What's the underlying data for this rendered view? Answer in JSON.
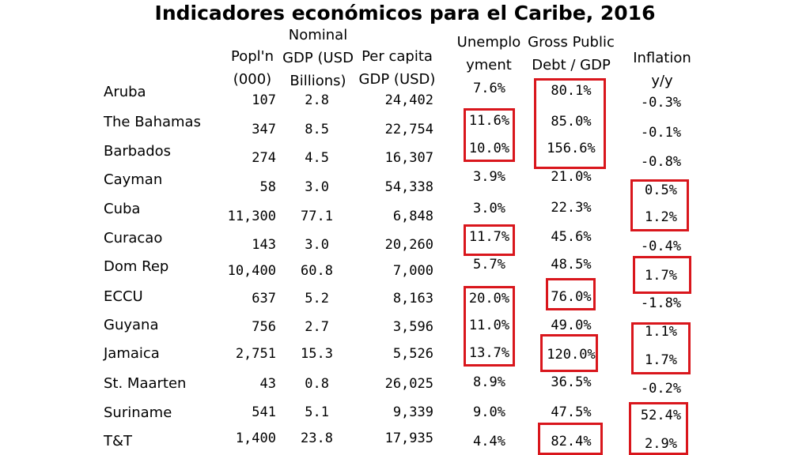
{
  "title": "Indicadores económicos para el Caribe, 2016",
  "headers": {
    "pop": [
      "Popl'n",
      "(000)"
    ],
    "gdp": [
      "Nominal",
      "GDP (USD",
      "Billions)"
    ],
    "percap": [
      "Per capita",
      "GDP (USD)"
    ],
    "unemp": [
      "Unemplo",
      "yment"
    ],
    "debt": [
      "Gross Public",
      "Debt / GDP"
    ],
    "infl": [
      "Inflation",
      "y/y"
    ]
  },
  "rows": [
    {
      "country": "Aruba",
      "pop": "107",
      "gdp": "2.8",
      "percap": "24,402",
      "unemp": "7.6%",
      "debt": "80.1%",
      "infl": "-0.3%"
    },
    {
      "country": "The Bahamas",
      "pop": "347",
      "gdp": "8.5",
      "percap": "22,754",
      "unemp": "11.6%",
      "debt": "85.0%",
      "infl": "-0.1%"
    },
    {
      "country": "Barbados",
      "pop": "274",
      "gdp": "4.5",
      "percap": "16,307",
      "unemp": "10.0%",
      "debt": "156.6%",
      "infl": "-0.8%"
    },
    {
      "country": "Cayman",
      "pop": "58",
      "gdp": "3.0",
      "percap": "54,338",
      "unemp": "3.9%",
      "debt": "21.0%",
      "infl": "0.5%"
    },
    {
      "country": "Cuba",
      "pop": "11,300",
      "gdp": "77.1",
      "percap": "6,848",
      "unemp": "3.0%",
      "debt": "22.3%",
      "infl": "1.2%"
    },
    {
      "country": "Curacao",
      "pop": "143",
      "gdp": "3.0",
      "percap": "20,260",
      "unemp": "11.7%",
      "debt": "45.6%",
      "infl": "-0.4%"
    },
    {
      "country": "Dom Rep",
      "pop": "10,400",
      "gdp": "60.8",
      "percap": "7,000",
      "unemp": "5.7%",
      "debt": "48.5%",
      "infl": "1.7%"
    },
    {
      "country": "ECCU",
      "pop": "637",
      "gdp": "5.2",
      "percap": "8,163",
      "unemp": "20.0%",
      "debt": "76.0%",
      "infl": "-1.8%"
    },
    {
      "country": "Guyana",
      "pop": "756",
      "gdp": "2.7",
      "percap": "3,596",
      "unemp": "11.0%",
      "debt": "49.0%",
      "infl": "1.1%"
    },
    {
      "country": "Jamaica",
      "pop": "2,751",
      "gdp": "15.3",
      "percap": "5,526",
      "unemp": "13.7%",
      "debt": "120.0%",
      "infl": "1.7%"
    },
    {
      "country": "St. Maarten",
      "pop": "43",
      "gdp": "0.8",
      "percap": "26,025",
      "unemp": "8.9%",
      "debt": "36.5%",
      "infl": "-0.2%"
    },
    {
      "country": "Suriname",
      "pop": "541",
      "gdp": "5.1",
      "percap": "9,339",
      "unemp": "9.0%",
      "debt": "47.5%",
      "infl": "52.4%"
    },
    {
      "country": "T&T",
      "pop": "1,400",
      "gdp": "23.8",
      "percap": "17,935",
      "unemp": "4.4%",
      "debt": "82.4%",
      "infl": "2.9%"
    }
  ],
  "highlight_color": "#d9161c"
}
